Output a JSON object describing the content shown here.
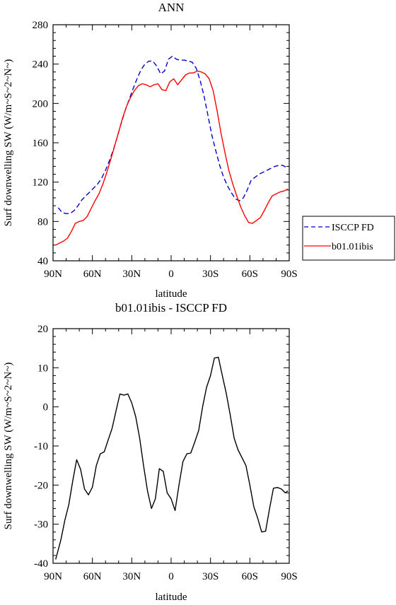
{
  "chart_data": [
    {
      "type": "line",
      "title": "ANN",
      "xlabel": "latitude",
      "ylabel": "Surf downwelling SW (W/m~S~2~N~)",
      "x_ticks": [
        {
          "value": 90,
          "label": "90N"
        },
        {
          "value": 60,
          "label": "60N"
        },
        {
          "value": 30,
          "label": "30N"
        },
        {
          "value": 0,
          "label": "0"
        },
        {
          "value": -30,
          "label": "30S"
        },
        {
          "value": -60,
          "label": "60S"
        },
        {
          "value": -90,
          "label": "90S"
        }
      ],
      "xlim": [
        90,
        -90
      ],
      "ylim": [
        40,
        280
      ],
      "y_ticks": [
        40,
        80,
        120,
        160,
        200,
        240,
        280
      ],
      "grid": false,
      "legend_position": "right",
      "series": [
        {
          "name": "ISCCP FD",
          "color": "#0000cc",
          "dash": "dashed",
          "x": [
            86,
            82,
            78,
            75,
            72,
            69,
            66,
            63,
            60,
            57,
            54,
            51,
            48,
            45,
            42,
            39,
            36,
            33,
            30,
            27,
            24,
            21,
            18,
            15,
            12,
            9,
            6,
            3,
            0,
            -3,
            -6,
            -9,
            -12,
            -15,
            -18,
            -21,
            -24,
            -27,
            -30,
            -33,
            -36,
            -39,
            -42,
            -45,
            -48,
            -51,
            -54,
            -57,
            -60,
            -63,
            -66,
            -69,
            -72,
            -75,
            -78,
            -81,
            -84,
            -87
          ],
          "y": [
            94,
            89,
            88,
            91,
            96,
            102,
            106,
            110,
            114,
            118,
            124,
            132,
            140,
            150,
            160,
            172,
            185,
            198,
            210,
            222,
            232,
            239,
            243,
            244,
            240,
            232,
            236,
            246,
            248,
            245,
            244,
            244,
            243,
            238,
            228,
            216,
            200,
            180,
            163,
            148,
            135,
            124,
            116,
            110,
            104,
            102,
            105,
            113,
            122,
            125,
            128,
            130,
            132,
            134,
            136,
            137,
            137,
            135
          ],
          "x_clean": [
            86,
            83,
            80,
            77,
            74,
            71,
            68,
            65,
            62,
            59,
            56,
            53,
            50,
            47,
            44,
            41,
            38,
            35,
            32,
            29,
            26,
            23,
            20,
            17,
            14,
            11,
            8,
            5,
            2,
            -1,
            -4,
            -7,
            -10,
            -13,
            -16,
            -19,
            -22,
            -25,
            -28,
            -31,
            -34,
            -37,
            -40,
            -43,
            -46,
            -49,
            -52,
            -55,
            -58,
            -61,
            -64,
            -67,
            -70,
            -73,
            -76,
            -79,
            -82,
            -85,
            -88
          ],
          "y_clean": [
            94,
            89,
            88,
            88,
            91,
            96,
            102,
            106,
            110,
            114,
            118,
            124,
            132,
            142,
            153,
            166,
            180,
            193,
            204,
            215,
            225,
            234,
            240,
            243,
            243,
            238,
            230,
            233,
            245,
            248,
            245,
            244,
            244,
            243,
            242,
            236,
            224,
            208,
            188,
            168,
            152,
            137,
            125,
            116,
            109,
            103,
            101,
            104,
            112,
            122,
            125,
            128,
            130,
            132,
            134,
            136,
            137,
            137,
            135
          ]
        },
        {
          "name": "b01.01ibis",
          "color": "#ff0000",
          "dash": "solid",
          "x": [
            88,
            85,
            82,
            79,
            76,
            73,
            70,
            67,
            64,
            61,
            58,
            55,
            52,
            49,
            46,
            43,
            40,
            37,
            34,
            31,
            28,
            25,
            22,
            19,
            16,
            13,
            10,
            7,
            4,
            1,
            -2,
            -5,
            -8,
            -11,
            -14,
            -17,
            -20,
            -23,
            -26,
            -29,
            -32,
            -35,
            -38,
            -41,
            -44,
            -47,
            -50,
            -53,
            -56,
            -59,
            -62,
            -65,
            -68,
            -71,
            -74,
            -77,
            -80,
            -83,
            -86,
            -89
          ],
          "y": [
            56,
            58,
            60,
            63,
            70,
            78,
            80,
            81,
            85,
            93,
            101,
            108,
            118,
            130,
            143,
            157,
            171,
            185,
            197,
            206,
            213,
            218,
            220,
            219,
            217,
            219,
            220,
            214,
            213,
            222,
            225,
            219,
            224,
            229,
            231,
            231,
            233,
            232,
            230,
            225,
            213,
            193,
            170,
            150,
            132,
            118,
            106,
            95,
            86,
            79,
            78,
            81,
            84,
            91,
            99,
            106,
            108,
            110,
            111,
            113
          ]
        }
      ]
    },
    {
      "type": "line",
      "title": "b01.01ibis - ISCCP FD",
      "xlabel": "latitude",
      "ylabel": "Surf downwelling SW (W/m~S~2~N~)",
      "x_ticks": [
        {
          "value": 90,
          "label": "90N"
        },
        {
          "value": 60,
          "label": "60N"
        },
        {
          "value": 30,
          "label": "30N"
        },
        {
          "value": 0,
          "label": "0"
        },
        {
          "value": -30,
          "label": "30S"
        },
        {
          "value": -60,
          "label": "60S"
        },
        {
          "value": -90,
          "label": "90S"
        }
      ],
      "xlim": [
        90,
        -90
      ],
      "ylim": [
        -40,
        20
      ],
      "y_ticks": [
        -40,
        -30,
        -20,
        -10,
        0,
        10,
        20
      ],
      "grid": false,
      "series": [
        {
          "color": "#000000",
          "dash": "solid",
          "x": [
            88,
            84,
            81,
            78,
            75,
            72,
            69,
            66,
            63,
            60,
            57,
            54,
            51,
            48,
            45,
            42,
            39,
            36,
            33,
            30,
            27,
            24,
            21,
            18,
            15,
            12,
            9,
            6,
            3,
            0,
            -3,
            -6,
            -9,
            -12,
            -15,
            -18,
            -21,
            -24,
            -27,
            -30,
            -33,
            -36,
            -39,
            -42,
            -45,
            -48,
            -51,
            -54,
            -57,
            -60,
            -63,
            -66,
            -69,
            -72,
            -75,
            -78,
            -81,
            -84,
            -87,
            -89
          ],
          "y": [
            -39,
            -34,
            -29,
            -25,
            -19,
            -13.5,
            -16,
            -21,
            -22.5,
            -20.5,
            -15,
            -12,
            -11.5,
            -8.5,
            -5.5,
            -1,
            3.3,
            3,
            3.3,
            1,
            -2.5,
            -8,
            -15,
            -21.5,
            -26,
            -23.5,
            -15.8,
            -16.5,
            -22,
            -23.5,
            -26.5,
            -20,
            -14,
            -12,
            -11.8,
            -9,
            -6,
            0,
            5,
            8,
            12.5,
            12.7,
            8,
            3.5,
            -2,
            -8,
            -11,
            -13,
            -15,
            -20,
            -25.5,
            -28.5,
            -32,
            -31.8,
            -26,
            -20.8,
            -20.6,
            -21,
            -22,
            -21.5
          ]
        }
      ]
    }
  ]
}
